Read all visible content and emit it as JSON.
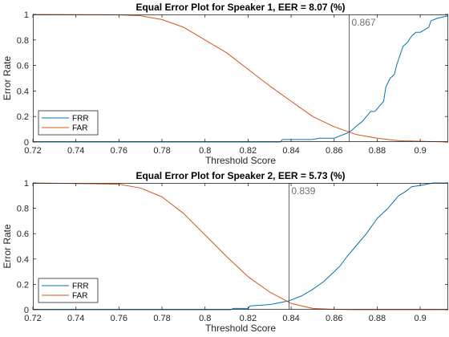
{
  "chart_data": [
    {
      "type": "line",
      "title": "Equal Error Plot for Speaker 1, EER = 8.07 (%)",
      "xlabel": "Threshold Score",
      "ylabel": "Error Rate",
      "xlim": [
        0.72,
        0.913
      ],
      "ylim": [
        0,
        1
      ],
      "xticks": [
        "0.72",
        "0.74",
        "0.76",
        "0.78",
        "0.8",
        "0.82",
        "0.84",
        "0.86",
        "0.88",
        "0.9"
      ],
      "yticks": [
        "0",
        "0.2",
        "0.4",
        "0.6",
        "0.8",
        "1"
      ],
      "legend_position": "bottom-left",
      "grid": false,
      "threshold_line": 0.867,
      "threshold_label": "0.867",
      "series": [
        {
          "name": "FRR",
          "color": "#0072BD",
          "x": [
            0.72,
            0.835,
            0.836,
            0.85,
            0.853,
            0.86,
            0.863,
            0.866,
            0.868,
            0.87,
            0.873,
            0.875,
            0.877,
            0.879,
            0.881,
            0.883,
            0.884,
            0.886,
            0.888,
            0.889,
            0.89,
            0.892,
            0.894,
            0.896,
            0.898,
            0.9,
            0.904,
            0.905,
            0.908,
            0.913
          ],
          "y": [
            0,
            0,
            0.02,
            0.02,
            0.03,
            0.03,
            0.05,
            0.07,
            0.09,
            0.12,
            0.16,
            0.2,
            0.24,
            0.24,
            0.28,
            0.32,
            0.43,
            0.5,
            0.53,
            0.6,
            0.65,
            0.75,
            0.78,
            0.83,
            0.86,
            0.86,
            0.9,
            0.95,
            0.97,
            0.99
          ]
        },
        {
          "name": "FAR",
          "color": "#D95319",
          "x": [
            0.72,
            0.76,
            0.77,
            0.78,
            0.79,
            0.8,
            0.81,
            0.82,
            0.83,
            0.84,
            0.85,
            0.86,
            0.865,
            0.87,
            0.88,
            0.89,
            0.913
          ],
          "y": [
            1,
            0.997,
            0.99,
            0.96,
            0.9,
            0.8,
            0.7,
            0.57,
            0.44,
            0.32,
            0.2,
            0.12,
            0.09,
            0.06,
            0.03,
            0.01,
            0
          ]
        }
      ]
    },
    {
      "type": "line",
      "title": "Equal Error Plot for Speaker 2, EER = 5.73 (%)",
      "xlabel": "Threshold Score",
      "ylabel": "Error Rate",
      "xlim": [
        0.72,
        0.913
      ],
      "ylim": [
        0,
        1
      ],
      "xticks": [
        "0.72",
        "0.74",
        "0.76",
        "0.78",
        "0.8",
        "0.82",
        "0.84",
        "0.86",
        "0.88",
        "0.9"
      ],
      "yticks": [
        "0",
        "0.2",
        "0.4",
        "0.6",
        "0.8",
        "1"
      ],
      "legend_position": "bottom-left",
      "grid": false,
      "threshold_line": 0.839,
      "threshold_label": "0.839",
      "series": [
        {
          "name": "FRR",
          "color": "#0072BD",
          "x": [
            0.72,
            0.812,
            0.813,
            0.82,
            0.821,
            0.83,
            0.833,
            0.836,
            0.839,
            0.845,
            0.85,
            0.855,
            0.86,
            0.863,
            0.866,
            0.87,
            0.875,
            0.88,
            0.885,
            0.888,
            0.89,
            0.893,
            0.896,
            0.9,
            0.903,
            0.906,
            0.913
          ],
          "y": [
            0,
            0,
            0.01,
            0.01,
            0.03,
            0.04,
            0.05,
            0.06,
            0.07,
            0.11,
            0.16,
            0.22,
            0.3,
            0.35,
            0.42,
            0.5,
            0.6,
            0.72,
            0.8,
            0.86,
            0.9,
            0.93,
            0.97,
            0.98,
            0.99,
            1,
            1
          ]
        },
        {
          "name": "FAR",
          "color": "#D95319",
          "x": [
            0.72,
            0.76,
            0.77,
            0.78,
            0.79,
            0.8,
            0.81,
            0.82,
            0.83,
            0.84,
            0.85,
            0.86,
            0.87,
            0.88,
            0.913
          ],
          "y": [
            1,
            0.99,
            0.96,
            0.89,
            0.76,
            0.59,
            0.42,
            0.26,
            0.14,
            0.05,
            0.01,
            0.003,
            0,
            0,
            0
          ]
        }
      ]
    }
  ]
}
